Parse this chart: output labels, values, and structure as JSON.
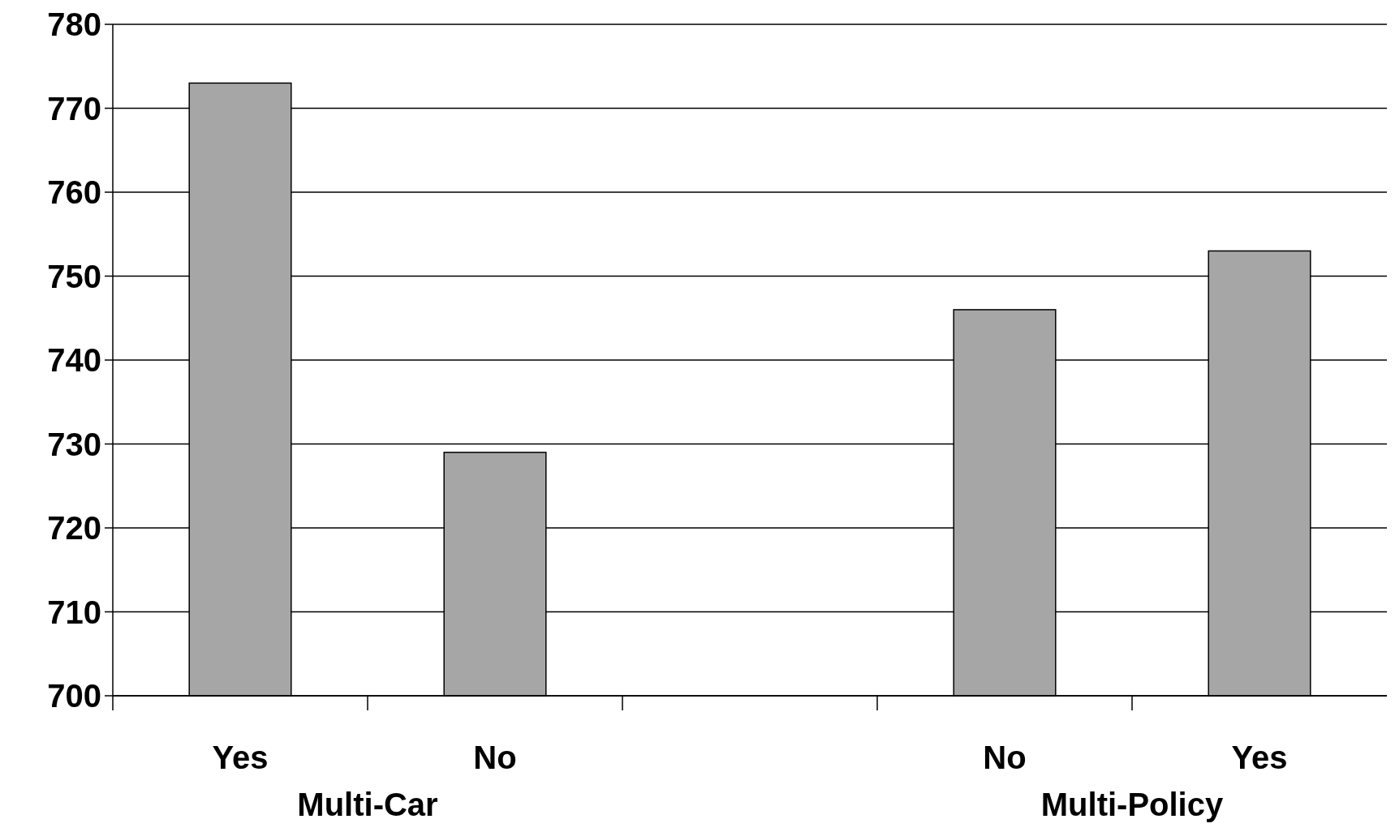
{
  "chart_data": {
    "type": "bar",
    "categories": [
      "Yes",
      "No",
      null,
      "No",
      "Yes"
    ],
    "values": [
      773,
      729,
      null,
      746,
      753
    ],
    "color": "#a6a6a6",
    "ylim": [
      700,
      780
    ],
    "yticks": [
      700,
      710,
      720,
      730,
      740,
      750,
      760,
      770,
      780
    ],
    "grid": "y",
    "annotations": [
      "Multi-Car",
      "Multi-Policy"
    ]
  }
}
